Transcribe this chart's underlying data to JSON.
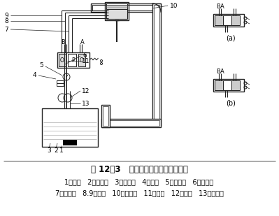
{
  "title": "图 12－3   打包机液压系统简易原理图",
  "legend_line1": "1－油箱   2－漏油器   3－吸油管   4－油管   5－溢流阀   6－节压阀",
  "legend_line2": "7－换向阀   8.9－管道   10－液压缸   11－油管   12－油泵   13－回油管",
  "bg_color": "#ffffff",
  "line_color": "#222222",
  "gray_color": "#aaaaaa",
  "title_fontsize": 8.5,
  "legend_fontsize": 7.0
}
